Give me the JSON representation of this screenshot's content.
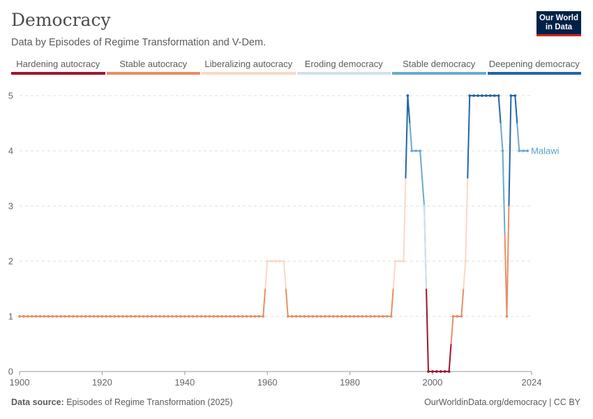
{
  "header": {
    "title": "Democracy",
    "subtitle": "Data by Episodes of Regime Transformation and V-Dem.",
    "logo_line1": "Our World",
    "logo_line2": "in Data"
  },
  "legend": [
    {
      "label": "Hardening autocracy",
      "color": "#a2132e"
    },
    {
      "label": "Stable autocracy",
      "color": "#e98e64"
    },
    {
      "label": "Liberalizing autocracy",
      "color": "#f8d9c6"
    },
    {
      "label": "Eroding democracy",
      "color": "#cfe1ec"
    },
    {
      "label": "Stable democracy",
      "color": "#6aabcd"
    },
    {
      "label": "Deepening democracy",
      "color": "#2365a4"
    }
  ],
  "footer": {
    "source_label": "Data source:",
    "source_text": "Episodes of Regime Transformation (2025)",
    "credit": "OurWorldinData.org/democracy | CC BY"
  },
  "chart_data": {
    "type": "line",
    "ylim": [
      0,
      5
    ],
    "xlim": [
      1900,
      2024
    ],
    "y_ticks": [
      "0",
      "1",
      "2",
      "3",
      "4",
      "5"
    ],
    "x_ticks": [
      "1900",
      "1920",
      "1940",
      "1960",
      "1980",
      "2000",
      "2024"
    ],
    "grid": true,
    "series_label": "Malawi",
    "series_color": "#5b9fc7",
    "segments": [
      {
        "category": 1,
        "points": [
          [
            1900,
            1
          ],
          [
            1901,
            1
          ],
          [
            1902,
            1
          ],
          [
            1903,
            1
          ],
          [
            1904,
            1
          ],
          [
            1905,
            1
          ],
          [
            1906,
            1
          ],
          [
            1907,
            1
          ],
          [
            1908,
            1
          ],
          [
            1909,
            1
          ],
          [
            1910,
            1
          ],
          [
            1911,
            1
          ],
          [
            1912,
            1
          ],
          [
            1913,
            1
          ],
          [
            1914,
            1
          ],
          [
            1915,
            1
          ],
          [
            1916,
            1
          ],
          [
            1917,
            1
          ],
          [
            1918,
            1
          ],
          [
            1919,
            1
          ],
          [
            1920,
            1
          ],
          [
            1921,
            1
          ],
          [
            1922,
            1
          ],
          [
            1923,
            1
          ],
          [
            1924,
            1
          ],
          [
            1925,
            1
          ],
          [
            1926,
            1
          ],
          [
            1927,
            1
          ],
          [
            1928,
            1
          ],
          [
            1929,
            1
          ],
          [
            1930,
            1
          ],
          [
            1931,
            1
          ],
          [
            1932,
            1
          ],
          [
            1933,
            1
          ],
          [
            1934,
            1
          ],
          [
            1935,
            1
          ],
          [
            1936,
            1
          ],
          [
            1937,
            1
          ],
          [
            1938,
            1
          ],
          [
            1939,
            1
          ],
          [
            1940,
            1
          ],
          [
            1941,
            1
          ],
          [
            1942,
            1
          ],
          [
            1943,
            1
          ],
          [
            1944,
            1
          ],
          [
            1945,
            1
          ],
          [
            1946,
            1
          ],
          [
            1947,
            1
          ],
          [
            1948,
            1
          ],
          [
            1949,
            1
          ],
          [
            1950,
            1
          ],
          [
            1951,
            1
          ],
          [
            1952,
            1
          ],
          [
            1953,
            1
          ],
          [
            1954,
            1
          ],
          [
            1955,
            1
          ],
          [
            1956,
            1
          ],
          [
            1957,
            1
          ],
          [
            1958,
            1
          ],
          [
            1959,
            1
          ],
          [
            1959.5,
            1.5
          ]
        ]
      },
      {
        "category": 2,
        "points": [
          [
            1959.5,
            1.5
          ],
          [
            1960,
            2
          ],
          [
            1961,
            2
          ],
          [
            1962,
            2
          ],
          [
            1963,
            2
          ],
          [
            1964,
            2
          ],
          [
            1964.5,
            1.5
          ]
        ]
      },
      {
        "category": 1,
        "points": [
          [
            1964.5,
            1.5
          ],
          [
            1965,
            1
          ],
          [
            1966,
            1
          ],
          [
            1967,
            1
          ],
          [
            1968,
            1
          ],
          [
            1969,
            1
          ],
          [
            1970,
            1
          ],
          [
            1971,
            1
          ],
          [
            1972,
            1
          ],
          [
            1973,
            1
          ],
          [
            1974,
            1
          ],
          [
            1975,
            1
          ],
          [
            1976,
            1
          ],
          [
            1977,
            1
          ],
          [
            1978,
            1
          ],
          [
            1979,
            1
          ],
          [
            1980,
            1
          ],
          [
            1981,
            1
          ],
          [
            1982,
            1
          ],
          [
            1983,
            1
          ],
          [
            1984,
            1
          ],
          [
            1985,
            1
          ],
          [
            1986,
            1
          ],
          [
            1987,
            1
          ],
          [
            1988,
            1
          ],
          [
            1989,
            1
          ],
          [
            1990,
            1
          ],
          [
            1990.5,
            1.5
          ]
        ]
      },
      {
        "category": 2,
        "points": [
          [
            1990.5,
            1.5
          ],
          [
            1991,
            2
          ],
          [
            1992,
            2
          ],
          [
            1993,
            2
          ],
          [
            1993.5,
            3.5
          ]
        ]
      },
      {
        "category": 5,
        "points": [
          [
            1993.5,
            3.5
          ],
          [
            1994,
            5
          ],
          [
            1994.5,
            4.5
          ]
        ]
      },
      {
        "category": 4,
        "points": [
          [
            1994.5,
            4.5
          ],
          [
            1995,
            4
          ],
          [
            1996,
            4
          ],
          [
            1997,
            4
          ],
          [
            1998,
            3
          ],
          [
            1998.5,
            1.5
          ]
        ]
      },
      {
        "category": 3,
        "points": [
          [
            1998,
            3
          ],
          [
            1998.5,
            1.5
          ]
        ]
      },
      {
        "category": 0,
        "points": [
          [
            1998.5,
            1.5
          ],
          [
            1999,
            0
          ],
          [
            2000,
            0
          ],
          [
            2001,
            0
          ],
          [
            2002,
            0
          ],
          [
            2003,
            0
          ],
          [
            2004,
            0
          ],
          [
            2004.5,
            0.5
          ]
        ]
      },
      {
        "category": 1,
        "points": [
          [
            2004.5,
            0.5
          ],
          [
            2005,
            1
          ],
          [
            2006,
            1
          ],
          [
            2007,
            1
          ],
          [
            2007.5,
            1.5
          ]
        ]
      },
      {
        "category": 2,
        "points": [
          [
            2007.5,
            1.5
          ],
          [
            2008,
            2
          ],
          [
            2008.5,
            3.5
          ]
        ]
      },
      {
        "category": 5,
        "points": [
          [
            2008.5,
            3.5
          ],
          [
            2009,
            5
          ],
          [
            2010,
            5
          ],
          [
            2011,
            5
          ],
          [
            2012,
            5
          ],
          [
            2013,
            5
          ],
          [
            2014,
            5
          ],
          [
            2015,
            5
          ],
          [
            2016,
            5
          ],
          [
            2016.5,
            4.5
          ]
        ]
      },
      {
        "category": 4,
        "points": [
          [
            2016.5,
            4.5
          ],
          [
            2017,
            4
          ],
          [
            2017.5,
            2.5
          ]
        ]
      },
      {
        "category": 1,
        "points": [
          [
            2017.5,
            2.5
          ],
          [
            2018,
            1
          ],
          [
            2018.5,
            3
          ]
        ]
      },
      {
        "category": 5,
        "points": [
          [
            2018.5,
            3
          ],
          [
            2019,
            5
          ],
          [
            2020,
            5
          ],
          [
            2020.5,
            4.5
          ]
        ]
      },
      {
        "category": 4,
        "points": [
          [
            2020.5,
            4.5
          ],
          [
            2021,
            4
          ],
          [
            2022,
            4
          ],
          [
            2023,
            4
          ]
        ]
      }
    ]
  }
}
